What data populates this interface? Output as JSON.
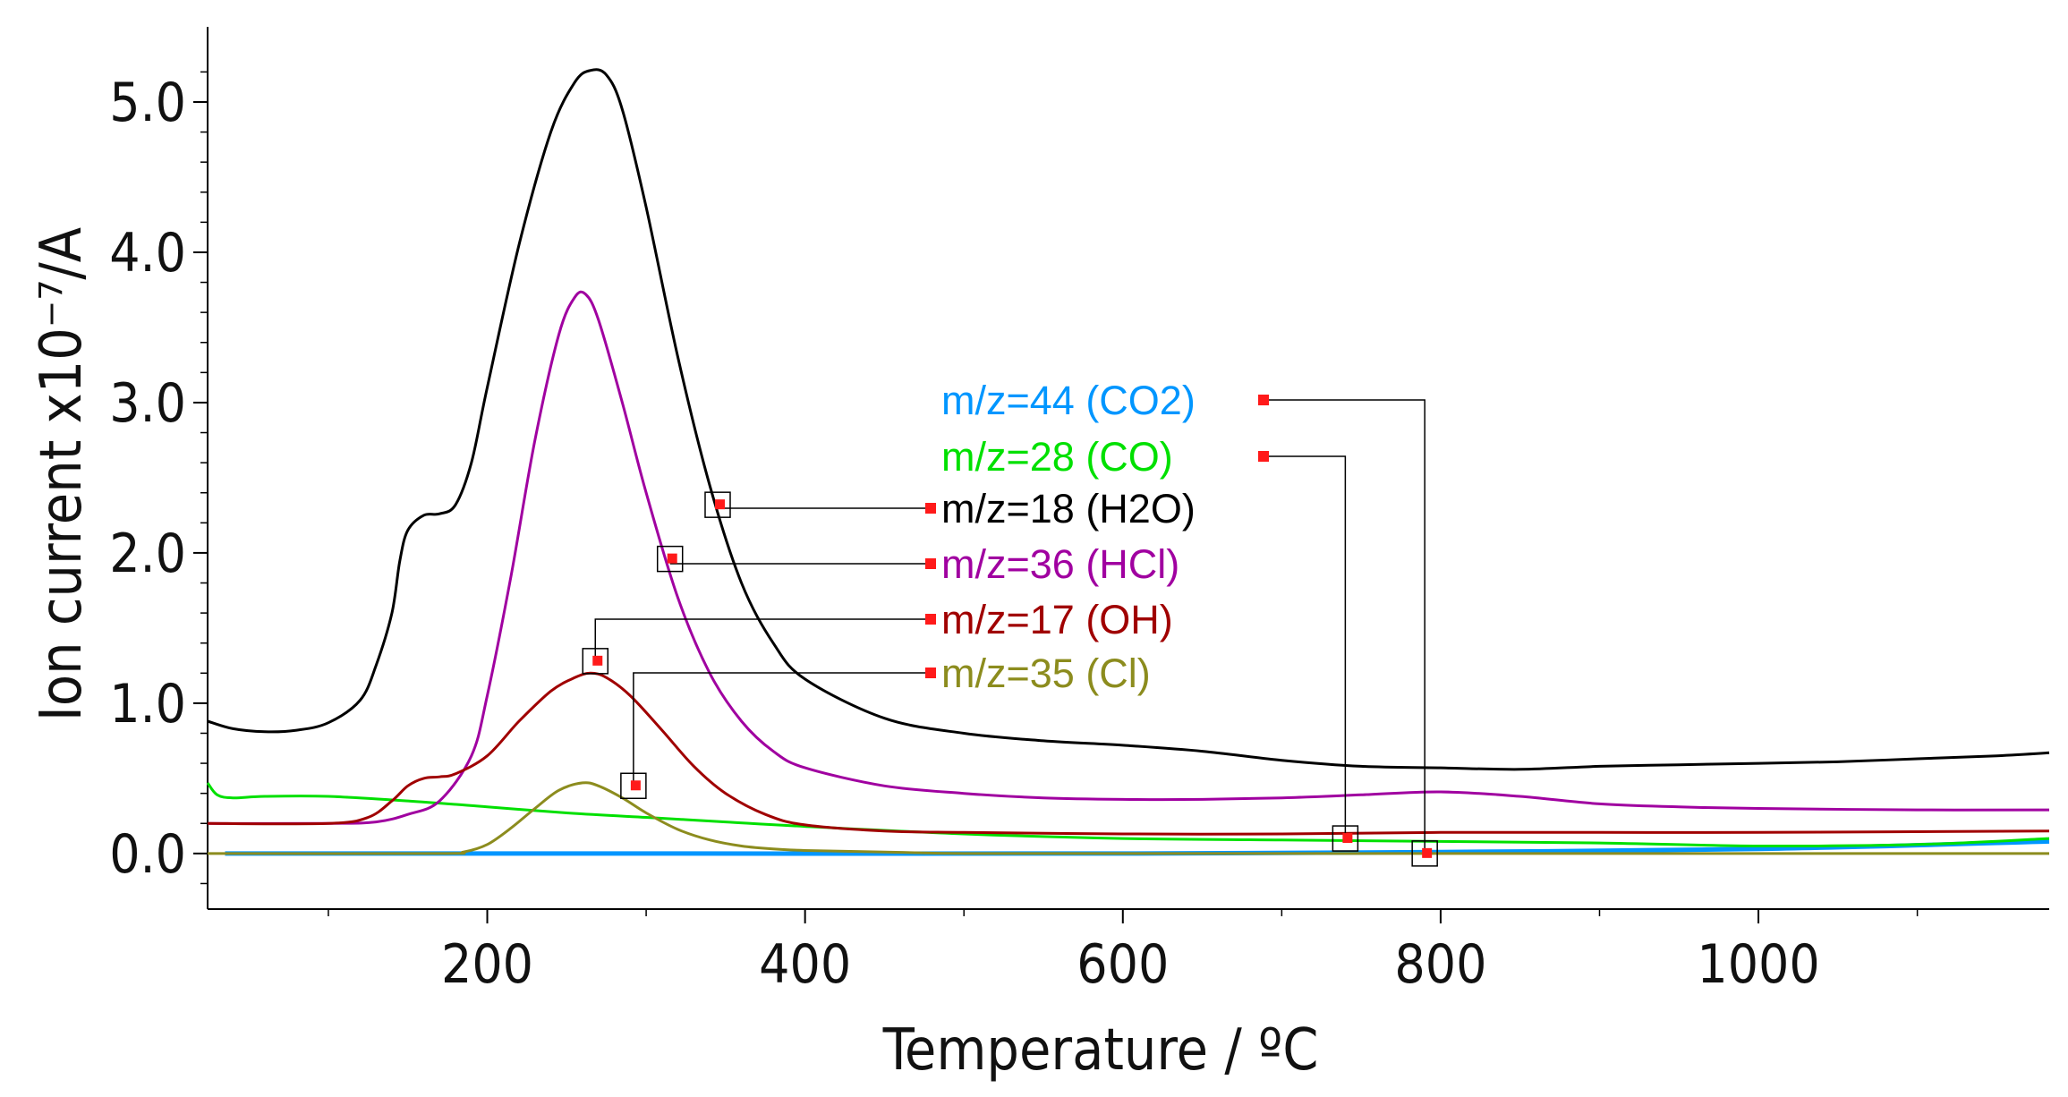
{
  "chart_data": {
    "type": "line",
    "title": "",
    "xlabel": "Temperature / ºC",
    "ylabel": "Ion current x10⁻⁷/A",
    "xlim": [
      24,
      1183
    ],
    "ylim": [
      -0.37,
      5.5
    ],
    "x_ticks": [
      "200",
      "400",
      "600",
      "800",
      "1000"
    ],
    "x_tick_values": [
      200,
      400,
      600,
      800,
      1000
    ],
    "y_ticks": [
      "0.0",
      "1.0",
      "2.0",
      "3.0",
      "4.0",
      "5.0"
    ],
    "y_tick_values": [
      0,
      1,
      2,
      3,
      4,
      5
    ],
    "grid": false,
    "series": [
      {
        "name": "m/z=44 (CO2)",
        "color": "#0096ff",
        "x": [
          35,
          300,
          600,
          800,
          1000,
          1183
        ],
        "y": [
          0.0,
          0.0,
          0.0,
          0.01,
          0.03,
          0.08
        ],
        "marker": [
          790,
          0.0
        ]
      },
      {
        "name": "m/z=28 (CO)",
        "color": "#00e000",
        "x": [
          24,
          30,
          40,
          60,
          100,
          150,
          200,
          250,
          300,
          350,
          400,
          500,
          600,
          700,
          800,
          900,
          1000,
          1100,
          1183
        ],
        "y": [
          0.47,
          0.39,
          0.37,
          0.38,
          0.38,
          0.35,
          0.31,
          0.27,
          0.24,
          0.21,
          0.18,
          0.13,
          0.1,
          0.09,
          0.08,
          0.07,
          0.05,
          0.06,
          0.1
        ],
        "marker": [
          740,
          0.1
        ]
      },
      {
        "name": "m/z=18 (H2O)",
        "color": "#000000",
        "x": [
          24,
          40,
          60,
          80,
          100,
          120,
          130,
          140,
          145,
          150,
          160,
          170,
          180,
          190,
          200,
          220,
          240,
          255,
          265,
          275,
          285,
          300,
          320,
          340,
          360,
          380,
          400,
          450,
          500,
          550,
          600,
          650,
          700,
          750,
          800,
          850,
          900,
          950,
          1000,
          1050,
          1100,
          1150,
          1183
        ],
        "y": [
          0.88,
          0.83,
          0.81,
          0.82,
          0.87,
          1.02,
          1.25,
          1.6,
          1.95,
          2.15,
          2.25,
          2.26,
          2.32,
          2.6,
          3.1,
          4.05,
          4.8,
          5.13,
          5.21,
          5.18,
          4.95,
          4.3,
          3.3,
          2.45,
          1.8,
          1.4,
          1.16,
          0.9,
          0.8,
          0.75,
          0.72,
          0.68,
          0.62,
          0.58,
          0.57,
          0.56,
          0.58,
          0.59,
          0.6,
          0.61,
          0.63,
          0.65,
          0.67
        ],
        "marker": [
          345,
          2.32
        ]
      },
      {
        "name": "m/z=36 (HCl)",
        "color": "#a000a0",
        "x": [
          24,
          100,
          130,
          150,
          170,
          190,
          200,
          215,
          230,
          245,
          255,
          262,
          270,
          285,
          300,
          320,
          340,
          360,
          380,
          400,
          450,
          500,
          550,
          600,
          650,
          700,
          750,
          800,
          850,
          900,
          950,
          1000,
          1100,
          1183
        ],
        "y": [
          0.2,
          0.2,
          0.21,
          0.26,
          0.35,
          0.65,
          1.05,
          1.85,
          2.75,
          3.45,
          3.7,
          3.72,
          3.55,
          3.0,
          2.4,
          1.7,
          1.2,
          0.88,
          0.68,
          0.57,
          0.45,
          0.4,
          0.37,
          0.36,
          0.36,
          0.37,
          0.39,
          0.41,
          0.38,
          0.33,
          0.31,
          0.3,
          0.29,
          0.29
        ],
        "marker": [
          315,
          1.96
        ]
      },
      {
        "name": "m/z=17 (OH)",
        "color": "#a00000",
        "x": [
          24,
          100,
          125,
          140,
          150,
          160,
          170,
          180,
          200,
          220,
          240,
          255,
          265,
          275,
          290,
          310,
          330,
          350,
          375,
          400,
          450,
          500,
          600,
          700,
          800,
          900,
          1000,
          1183
        ],
        "y": [
          0.2,
          0.2,
          0.24,
          0.35,
          0.45,
          0.5,
          0.51,
          0.53,
          0.65,
          0.88,
          1.08,
          1.17,
          1.2,
          1.17,
          1.05,
          0.82,
          0.58,
          0.4,
          0.26,
          0.19,
          0.15,
          0.14,
          0.13,
          0.13,
          0.14,
          0.14,
          0.14,
          0.15
        ],
        "marker": [
          268,
          1.28
        ]
      },
      {
        "name": "m/z=35 (Cl)",
        "color": "#8c8c1e",
        "x": [
          24,
          170,
          185,
          200,
          215,
          230,
          245,
          260,
          270,
          285,
          300,
          320,
          340,
          360,
          380,
          400,
          450,
          500,
          600,
          800,
          1000,
          1183
        ],
        "y": [
          0.0,
          0.0,
          0.01,
          0.06,
          0.17,
          0.3,
          0.42,
          0.47,
          0.45,
          0.37,
          0.27,
          0.16,
          0.09,
          0.05,
          0.03,
          0.02,
          0.01,
          0.0,
          0.0,
          0.0,
          0.0,
          0.0
        ],
        "marker": [
          292,
          0.45
        ]
      }
    ]
  }
}
